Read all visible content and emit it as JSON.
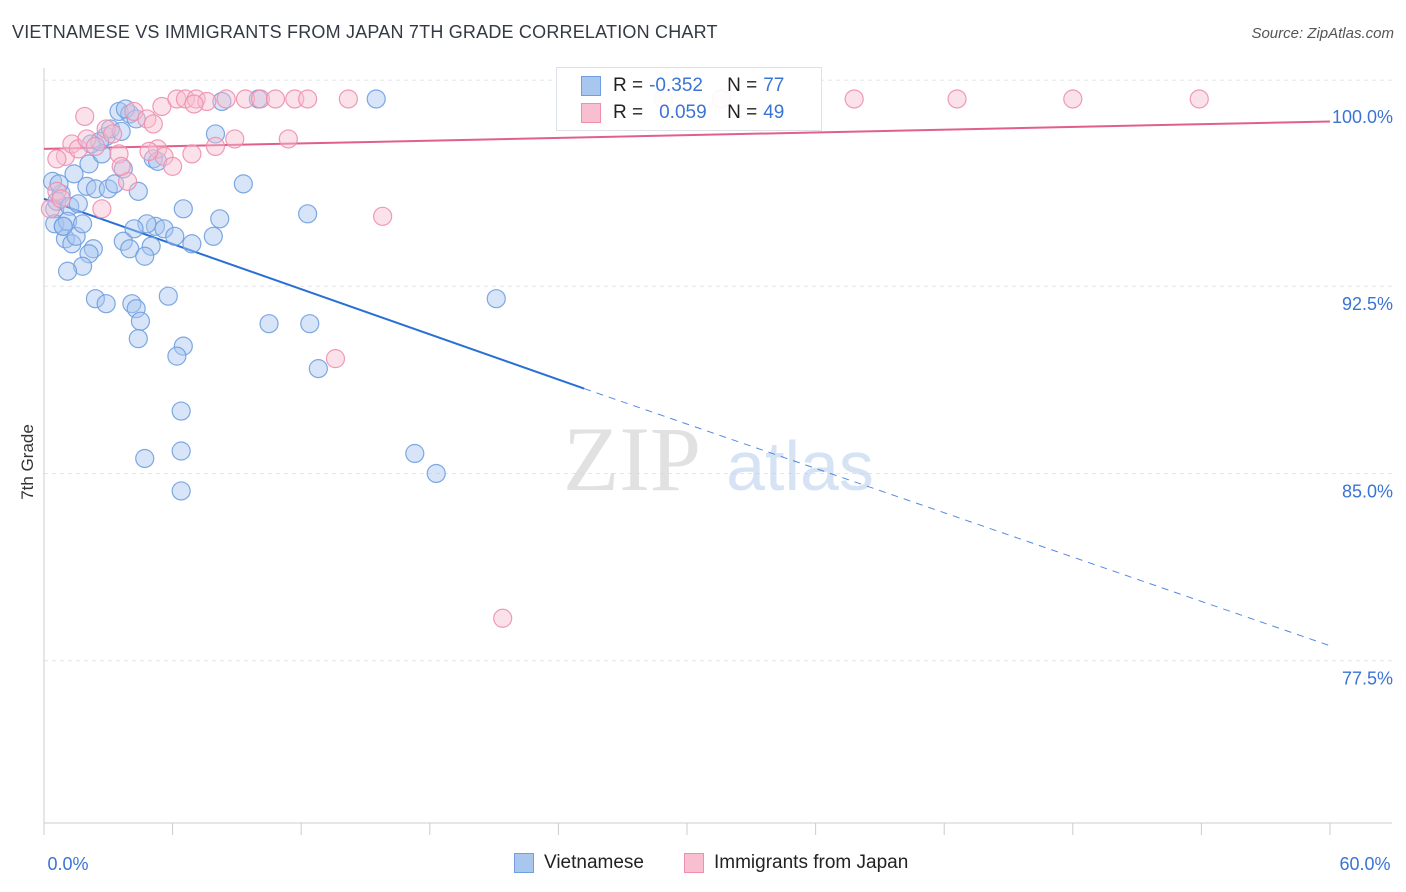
{
  "header": {
    "title": "VIETNAMESE VS IMMIGRANTS FROM JAPAN 7TH GRADE CORRELATION CHART",
    "source": "Source: ZipAtlas.com"
  },
  "watermark": {
    "zip": "ZIP",
    "atlas": "atlas"
  },
  "stats_legend": {
    "rows": [
      {
        "r_label": "R =",
        "r_value": "-0.352",
        "n_label": "N =",
        "n_value": "77",
        "color": "#a9c6ef",
        "border": "#6f9fe0"
      },
      {
        "r_label": "R =",
        "r_value": "0.059",
        "n_label": "N =",
        "n_value": "49",
        "color": "#f7bfd0",
        "border": "#ee8fae"
      }
    ]
  },
  "bottom_legend": {
    "items": [
      {
        "label": "Vietnamese",
        "color": "#a9c6ef",
        "border": "#6f9fe0"
      },
      {
        "label": "Immigrants from Japan",
        "color": "#f7bfd0",
        "border": "#ee8fae"
      }
    ]
  },
  "chart_data": {
    "type": "scatter",
    "title": "VIETNAMESE VS IMMIGRANTS FROM JAPAN 7TH GRADE CORRELATION CHART",
    "xlabel": "",
    "ylabel": "7th Grade",
    "xlim": [
      0,
      60
    ],
    "ylim": [
      71,
      100.8
    ],
    "x_tick_labels": [
      "0.0%",
      "60.0%"
    ],
    "y_ticks": [
      77.5,
      85.0,
      92.5,
      100.0
    ],
    "y_tick_labels": [
      "77.5%",
      "85.0%",
      "92.5%",
      "100.0%"
    ],
    "grid": true,
    "legend_position": "top-center",
    "series": [
      {
        "name": "Vietnamese",
        "color": "#6f9fe0",
        "fill": "#a9c6ef",
        "trend": {
          "x0": 0,
          "y0": 96.0,
          "x1": 25.2,
          "y1": 88.4,
          "dash_to_x": 60,
          "dash_to_y": 78.1
        },
        "points": [
          [
            0.5,
            95.6
          ],
          [
            0.5,
            95.0
          ],
          [
            0.8,
            96.2
          ],
          [
            0.4,
            96.7
          ],
          [
            0.6,
            95.9
          ],
          [
            0.9,
            94.9
          ],
          [
            1.0,
            94.4
          ],
          [
            1.2,
            95.7
          ],
          [
            1.1,
            95.1
          ],
          [
            1.3,
            94.2
          ],
          [
            0.7,
            96.6
          ],
          [
            1.5,
            94.5
          ],
          [
            1.8,
            95.0
          ],
          [
            1.6,
            95.8
          ],
          [
            2.0,
            96.5
          ],
          [
            1.4,
            97.0
          ],
          [
            2.1,
            97.4
          ],
          [
            2.4,
            96.4
          ],
          [
            2.7,
            97.8
          ],
          [
            2.2,
            98.2
          ],
          [
            2.9,
            98.5
          ],
          [
            3.1,
            98.8
          ],
          [
            3.5,
            99.5
          ],
          [
            3.6,
            98.7
          ],
          [
            4.0,
            99.4
          ],
          [
            3.8,
            99.6
          ],
          [
            4.3,
            99.2
          ],
          [
            2.6,
            98.3
          ],
          [
            3.0,
            96.4
          ],
          [
            3.3,
            96.6
          ],
          [
            3.7,
            97.2
          ],
          [
            4.4,
            96.3
          ],
          [
            5.1,
            97.6
          ],
          [
            5.3,
            97.5
          ],
          [
            6.5,
            95.6
          ],
          [
            8.2,
            95.2
          ],
          [
            7.9,
            94.5
          ],
          [
            5.2,
            94.9
          ],
          [
            5.6,
            94.8
          ],
          [
            6.1,
            94.5
          ],
          [
            5.0,
            94.1
          ],
          [
            4.8,
            95.0
          ],
          [
            4.2,
            94.8
          ],
          [
            3.7,
            94.3
          ],
          [
            4.0,
            94.0
          ],
          [
            2.3,
            94.0
          ],
          [
            2.1,
            93.8
          ],
          [
            1.8,
            93.3
          ],
          [
            1.1,
            93.1
          ],
          [
            0.9,
            94.9
          ],
          [
            2.4,
            92.0
          ],
          [
            2.9,
            91.8
          ],
          [
            4.1,
            91.8
          ],
          [
            4.3,
            91.6
          ],
          [
            4.5,
            91.1
          ],
          [
            4.4,
            90.4
          ],
          [
            5.8,
            92.1
          ],
          [
            6.5,
            90.1
          ],
          [
            6.2,
            89.7
          ],
          [
            10.5,
            91.0
          ],
          [
            12.4,
            91.0
          ],
          [
            12.8,
            89.2
          ],
          [
            21.1,
            92.0
          ],
          [
            12.3,
            95.4
          ],
          [
            9.3,
            96.6
          ],
          [
            8.3,
            99.9
          ],
          [
            10.0,
            100.0
          ],
          [
            15.5,
            100.0
          ],
          [
            6.4,
            87.5
          ],
          [
            6.4,
            85.9
          ],
          [
            4.7,
            85.6
          ],
          [
            6.4,
            84.3
          ],
          [
            17.3,
            85.8
          ],
          [
            18.3,
            85.0
          ],
          [
            8.0,
            98.6
          ],
          [
            6.9,
            94.2
          ],
          [
            4.7,
            93.7
          ]
        ]
      },
      {
        "name": "Immigrants from Japan",
        "color": "#ee8fae",
        "fill": "#f7bfd0",
        "trend": {
          "x0": 0,
          "y0": 98.0,
          "x1": 60,
          "y1": 99.1
        },
        "points": [
          [
            0.3,
            95.6
          ],
          [
            0.6,
            96.3
          ],
          [
            0.8,
            96.0
          ],
          [
            1.0,
            97.7
          ],
          [
            1.3,
            98.2
          ],
          [
            1.6,
            98.0
          ],
          [
            2.0,
            98.4
          ],
          [
            2.4,
            98.1
          ],
          [
            2.9,
            98.8
          ],
          [
            3.2,
            98.6
          ],
          [
            3.5,
            97.8
          ],
          [
            3.9,
            96.7
          ],
          [
            4.2,
            99.5
          ],
          [
            4.8,
            99.2
          ],
          [
            5.3,
            98.0
          ],
          [
            5.6,
            97.7
          ],
          [
            6.0,
            97.3
          ],
          [
            5.1,
            99.0
          ],
          [
            5.5,
            99.7
          ],
          [
            6.2,
            100.0
          ],
          [
            6.6,
            100.0
          ],
          [
            7.1,
            100.0
          ],
          [
            7.6,
            99.9
          ],
          [
            8.0,
            98.1
          ],
          [
            8.5,
            100.0
          ],
          [
            8.9,
            98.4
          ],
          [
            9.4,
            100.0
          ],
          [
            10.1,
            100.0
          ],
          [
            10.8,
            100.0
          ],
          [
            11.4,
            98.4
          ],
          [
            11.7,
            100.0
          ],
          [
            12.3,
            100.0
          ],
          [
            14.2,
            100.0
          ],
          [
            15.8,
            95.3
          ],
          [
            13.6,
            89.6
          ],
          [
            21.4,
            79.2
          ],
          [
            28.9,
            100.0
          ],
          [
            31.6,
            100.0
          ],
          [
            37.8,
            100.0
          ],
          [
            42.6,
            100.0
          ],
          [
            48.0,
            100.0
          ],
          [
            53.9,
            100.0
          ],
          [
            2.7,
            95.6
          ],
          [
            3.6,
            97.3
          ],
          [
            4.9,
            97.9
          ],
          [
            1.9,
            99.3
          ],
          [
            7.0,
            99.8
          ],
          [
            6.9,
            97.8
          ],
          [
            0.6,
            97.6
          ]
        ]
      }
    ]
  }
}
